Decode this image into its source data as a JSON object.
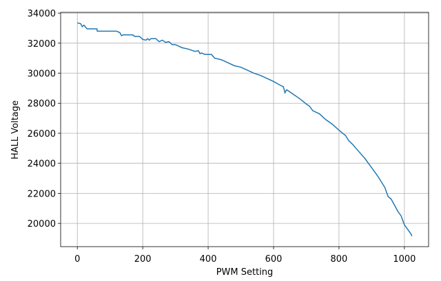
{
  "chart_data": {
    "type": "line",
    "xlabel": "PWM Setting",
    "ylabel": "HALL Voltage",
    "x": [
      0,
      10,
      15,
      20,
      30,
      60,
      61,
      120,
      130,
      135,
      140,
      170,
      175,
      190,
      200,
      210,
      215,
      220,
      225,
      240,
      250,
      260,
      270,
      280,
      290,
      300,
      320,
      340,
      360,
      370,
      375,
      380,
      390,
      410,
      420,
      440,
      460,
      480,
      500,
      520,
      540,
      560,
      580,
      600,
      620,
      630,
      635,
      640,
      660,
      680,
      700,
      710,
      720,
      740,
      760,
      780,
      800,
      820,
      830,
      840,
      860,
      880,
      900,
      920,
      940,
      950,
      960,
      970,
      980,
      990,
      1000,
      1010,
      1020,
      1023
    ],
    "series": [
      {
        "color": "#1f77b4",
        "values": [
          33350,
          33300,
          33100,
          33200,
          32950,
          32950,
          32800,
          32800,
          32700,
          32500,
          32550,
          32550,
          32450,
          32450,
          32250,
          32200,
          32300,
          32200,
          32300,
          32300,
          32100,
          32200,
          32050,
          32100,
          31900,
          31900,
          31700,
          31600,
          31450,
          31500,
          31300,
          31350,
          31250,
          31250,
          31000,
          30900,
          30700,
          30500,
          30400,
          30200,
          30000,
          29850,
          29650,
          29450,
          29200,
          29100,
          28700,
          28900,
          28600,
          28300,
          27950,
          27800,
          27500,
          27300,
          26900,
          26600,
          26200,
          25850,
          25500,
          25300,
          24800,
          24300,
          23700,
          23100,
          22400,
          21800,
          21600,
          21200,
          20800,
          20500,
          19900,
          19600,
          19300,
          19150
        ]
      }
    ],
    "xlim": [
      -51,
      1074
    ],
    "ylim": [
      18450,
      34050
    ],
    "xticks": [
      0,
      200,
      400,
      600,
      800,
      1000
    ],
    "yticks": [
      20000,
      22000,
      24000,
      26000,
      28000,
      30000,
      32000,
      34000
    ],
    "grid": true
  }
}
